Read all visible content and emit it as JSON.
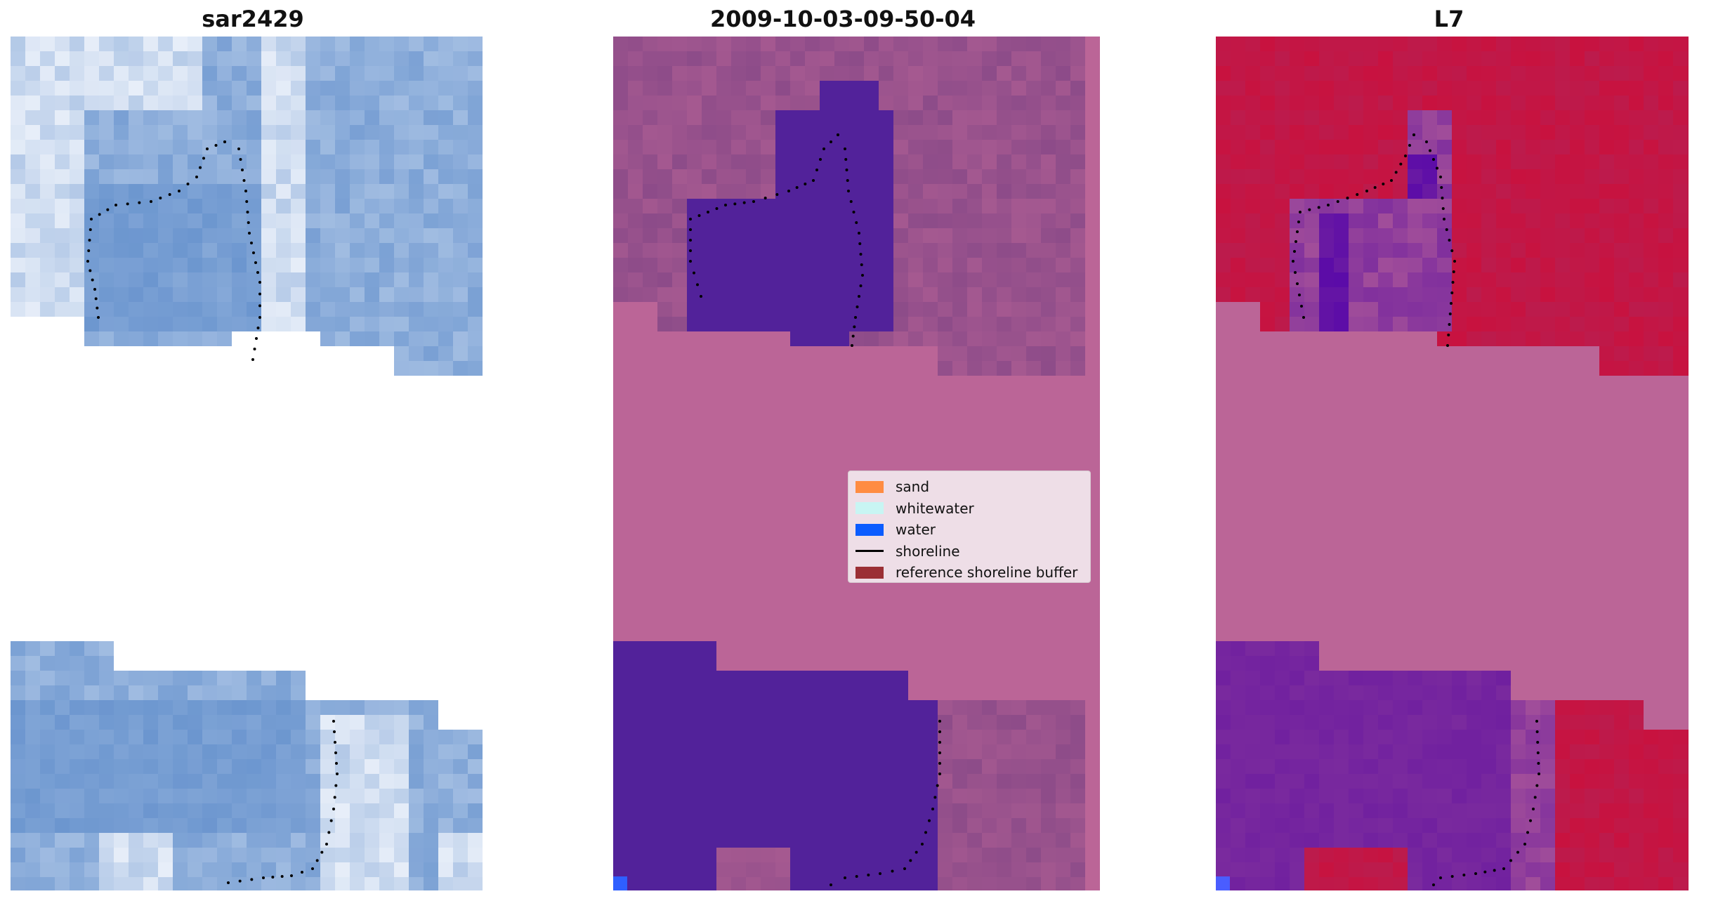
{
  "panels": [
    {
      "title": "sar2429"
    },
    {
      "title": "2009-10-03-09-50-04"
    },
    {
      "title": "L7"
    }
  ],
  "legend": {
    "items": [
      {
        "label": "sand",
        "color": "#ff8c42",
        "kind": "patch"
      },
      {
        "label": "whitewater",
        "color": "#c8f5f3",
        "kind": "patch"
      },
      {
        "label": "water",
        "color": "#0b5cff",
        "kind": "patch"
      },
      {
        "label": "shoreline",
        "color": "#000000",
        "kind": "line"
      },
      {
        "label": "reference shoreline buffer",
        "color": "#9b2f35",
        "kind": "patch"
      }
    ]
  },
  "colors": {
    "rgb_base": "#6c96cf",
    "rgb_light": "#c4d6ee",
    "rgb_white": "#eef3fb",
    "class_background": "#bb6597",
    "class_land": "#8a4a88",
    "class_water": "#52229a",
    "ndwi_land": "#c8123f",
    "ndwi_water": "#7a2a9e",
    "nodata_pink": "#bb6597"
  }
}
